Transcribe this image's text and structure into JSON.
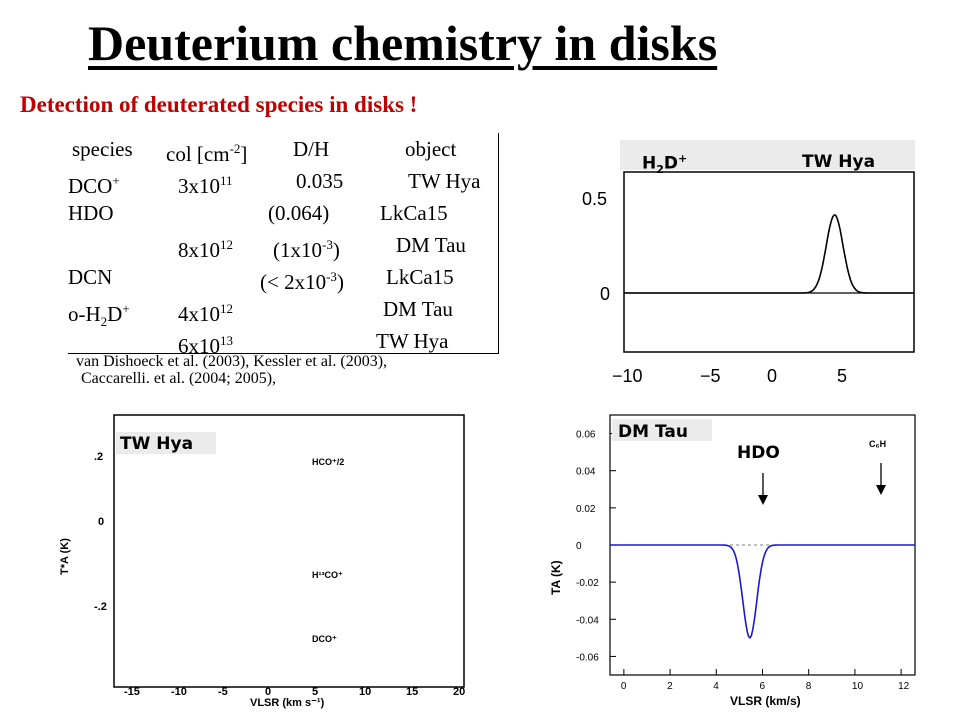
{
  "title": "Deuterium chemistry in disks",
  "subtitle": "Detection of deuterated species in disks !",
  "table": {
    "headers": {
      "species": "species",
      "col": "col [cm",
      "col_exp": "-2",
      "col_close": "]",
      "dh": "D/H",
      "object": "object"
    },
    "rows": [
      {
        "species": "DCO",
        "species_sup": "+",
        "col": "3x10",
        "col_exp": "11",
        "dh": "0.035",
        "object": "TW Hya"
      },
      {
        "species": "HDO",
        "dh": "(0.064)",
        "object": "LkCa15"
      },
      {
        "col": "8x10",
        "col_exp": "12",
        "dh": "(1x10",
        "dh_exp": "-3",
        "dh_close": ")",
        "object": "DM Tau"
      },
      {
        "species": "DCN",
        "dh": "(< 2x10",
        "dh_exp": "-3",
        "dh_close": ")",
        "object": "LkCa15"
      },
      {
        "species": "o-H",
        "species_sub": "2",
        "species_mid": "D",
        "species_sup": "+",
        "col": "4x10",
        "col_exp": "12",
        "object": "DM Tau"
      },
      {
        "col": "6x10",
        "col_exp": "13",
        "object": "TW Hya"
      }
    ]
  },
  "references": {
    "line1": "van Dishoeck et al. (2003), Kessler et al. (2003),",
    "line2": "Caccarelli. et al. (2004; 2005),"
  },
  "panel_h2d": {
    "label_species": "H",
    "label_sub": "2",
    "label_mid": "D",
    "label_sup": "+",
    "label_object": "TW Hya",
    "yticks": [
      "0.5",
      "0"
    ],
    "xticks": [
      "−10",
      "−5",
      "0",
      "5"
    ]
  },
  "panel_twhya": {
    "label_object": "TW Hya",
    "yticks": [
      ".2",
      "0",
      "-.2"
    ],
    "xticks": [
      "-15",
      "-10",
      "-5",
      "0",
      "5",
      "10",
      "15",
      "20"
    ],
    "trace_labels": [
      "HCO⁺/2",
      "H¹³CO⁺",
      "DCO⁺"
    ],
    "ylabel": "T*A (K)",
    "xlabel": "VLSR (km s⁻¹)"
  },
  "panel_dmtau": {
    "label_object": "DM Tau",
    "label_species": "HDO",
    "marker_c6h": "C₆H",
    "yticks": [
      "0.06",
      "0.04",
      "0.02",
      "0",
      "-0.02",
      "-0.04",
      "-0.06"
    ],
    "xticks": [
      "0",
      "2",
      "4",
      "6",
      "8",
      "10",
      "12"
    ],
    "ylabel": "TA (K)",
    "xlabel": "VLSR (km/s)"
  },
  "colors": {
    "subtitle": "#c00000",
    "spectrum_red": "#cc3333",
    "fit_blue": "#1a1acc"
  }
}
